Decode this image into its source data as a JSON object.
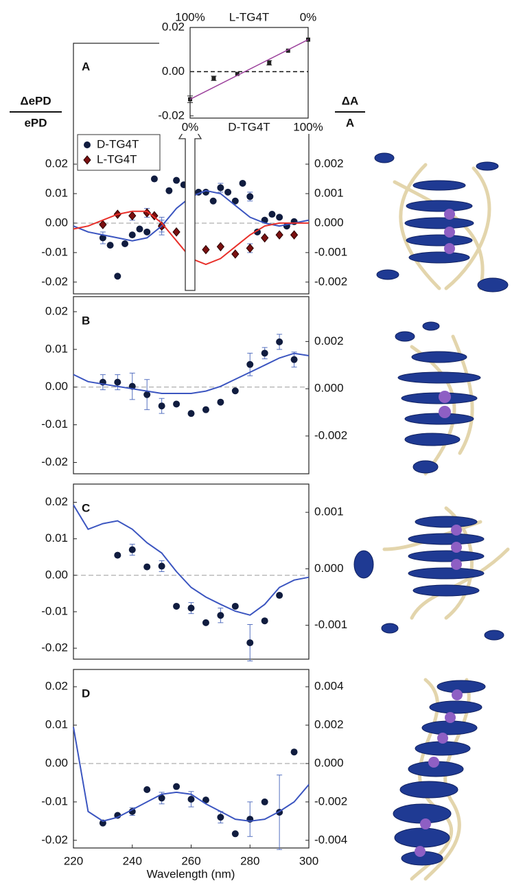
{
  "axis_titles": {
    "left_top": "ΔePD",
    "left_bottom": "ePD",
    "right_top": "ΔA",
    "right_bottom": "A",
    "x": "Wavelength (nm)"
  },
  "chart_data": [
    {
      "type": "combo",
      "label": "A",
      "xlim": [
        220,
        300
      ],
      "ylim": [
        -0.024,
        0.061
      ],
      "y2lim": [
        -0.0024,
        0.0061
      ],
      "yticks": [
        0.02,
        0.01,
        {
          "value": 0,
          "label": "0.00"
        },
        -0.01,
        -0.02
      ],
      "y2ticks": [
        0.002,
        0.001,
        {
          "value": 0,
          "label": "0.000"
        },
        -0.001,
        -0.002
      ],
      "legend": "upper left",
      "series": [
        {
          "name": "D-TG4T",
          "marker": "circle",
          "color": "#101c3f",
          "x": [
            230,
            232.5,
            235,
            237.5,
            240,
            242.5,
            245,
            247.5,
            250,
            252.5,
            255,
            257.5,
            260,
            262.5,
            265,
            267.5,
            270,
            272.5,
            275,
            277.5,
            280,
            282.5,
            285,
            287.5,
            290,
            292.5,
            295
          ],
          "values": [
            -0.005,
            -0.0075,
            -0.018,
            -0.007,
            -0.004,
            -0.002,
            -0.003,
            0.015,
            -0.001,
            0.011,
            0.0145,
            0.013,
            0.017,
            0.0105,
            0.0105,
            0.0075,
            0.012,
            0.0105,
            0.0075,
            0.0135,
            0.009,
            -0.003,
            0.001,
            0.003,
            0.002,
            -0.001,
            0.0005
          ],
          "errors": [
            0.002,
            null,
            null,
            null,
            null,
            null,
            null,
            null,
            0.002,
            null,
            null,
            null,
            null,
            null,
            null,
            null,
            0.0015,
            null,
            null,
            null,
            0.0015,
            null,
            null,
            null,
            null,
            null,
            null
          ]
        },
        {
          "name": "L-TG4T",
          "marker": "diamond",
          "color": "#7a1010",
          "x": [
            230,
            235,
            240,
            245,
            247.5,
            250,
            255,
            260,
            265,
            270,
            275,
            280,
            285,
            290,
            295
          ],
          "values": [
            -0.0005,
            0.003,
            0.0025,
            0.0035,
            0.0025,
            -0.001,
            -0.003,
            -0.0125,
            -0.009,
            -0.008,
            -0.0105,
            -0.0085,
            -0.005,
            -0.004,
            -0.004
          ],
          "errors": [
            null,
            null,
            0.0015,
            0.0015,
            null,
            0.003,
            null,
            null,
            null,
            null,
            null,
            0.0015,
            null,
            null,
            null
          ]
        },
        {
          "marker": "none",
          "color": "#3b55c0",
          "axis": "y2",
          "x": [
            220,
            225,
            230,
            235,
            240,
            245,
            250,
            255,
            260,
            265,
            270,
            275,
            280,
            285,
            290,
            295,
            300
          ],
          "values": [
            -0.0001,
            -0.0003,
            -0.0004,
            -0.0005,
            -0.0006,
            -0.0005,
            -0.0001,
            0.0005,
            0.0009,
            0.0011,
            0.001,
            0.0006,
            0.0002,
            0,
            -0.0001,
            0,
            0.0001
          ]
        },
        {
          "marker": "none",
          "color": "#e8302a",
          "axis": "y2",
          "x": [
            220,
            225,
            230,
            235,
            240,
            245,
            250,
            255,
            260,
            265,
            270,
            275,
            280,
            285,
            290,
            295,
            300
          ],
          "values": [
            -0.0002,
            -0.0001,
            0.0001,
            0.0003,
            0.0004,
            0.0004,
            0,
            -0.0006,
            -0.0012,
            -0.0014,
            -0.0012,
            -0.0008,
            -0.0004,
            -0.0001,
            0,
            0,
            0
          ]
        }
      ]
    },
    {
      "type": "combo",
      "label": "B",
      "xlim": [
        220,
        300
      ],
      "ylim": [
        -0.023,
        0.024
      ],
      "y2lim": [
        -0.0036,
        0.0039
      ],
      "yticks": [
        0.02,
        0.01,
        {
          "value": 0,
          "label": "0.00"
        },
        -0.01,
        -0.02
      ],
      "y2ticks": [
        0.002,
        {
          "value": 0,
          "label": "0.000"
        },
        -0.002
      ],
      "series": [
        {
          "marker": "circle",
          "color": "#101c3f",
          "x": [
            230,
            235,
            240,
            245,
            250,
            255,
            260,
            265,
            270,
            275,
            280,
            285,
            290,
            295
          ],
          "values": [
            0.0013,
            0.0013,
            0.0002,
            -0.002,
            -0.005,
            -0.0045,
            -0.007,
            -0.006,
            -0.004,
            -0.001,
            0.006,
            0.009,
            0.012,
            0.0073
          ],
          "errors": [
            0.002,
            0.002,
            0.0035,
            0.004,
            0.002,
            null,
            null,
            null,
            null,
            null,
            0.003,
            0.0015,
            0.002,
            0.002
          ]
        },
        {
          "marker": "none",
          "color": "#3b55c0",
          "axis": "y2",
          "x": [
            220,
            225,
            230,
            235,
            240,
            245,
            250,
            255,
            260,
            265,
            270,
            275,
            280,
            285,
            290,
            295,
            300
          ],
          "values": [
            0.0006,
            0.0003,
            0.0002,
            0.0001,
            0,
            -0.0001,
            -0.0002,
            -0.0002,
            -0.0002,
            -0.0001,
            0.0001,
            0.0004,
            0.0007,
            0.001,
            0.0013,
            0.0015,
            0.0014
          ]
        }
      ]
    },
    {
      "type": "combo",
      "label": "C",
      "xlim": [
        220,
        300
      ],
      "ylim": [
        -0.023,
        0.025
      ],
      "y2lim": [
        -0.0016,
        0.0015
      ],
      "yticks": [
        0.02,
        0.01,
        {
          "value": 0,
          "label": "0.00"
        },
        -0.01,
        -0.02
      ],
      "y2ticks": [
        0.001,
        {
          "value": 0,
          "label": "0.000"
        },
        -0.001
      ],
      "series": [
        {
          "marker": "circle",
          "color": "#101c3f",
          "x": [
            235,
            240,
            245,
            250,
            255,
            260,
            265,
            270,
            275,
            280,
            285,
            290
          ],
          "values": [
            0.0055,
            0.007,
            0.0023,
            0.0025,
            -0.0085,
            -0.009,
            -0.013,
            -0.011,
            -0.0085,
            -0.0185,
            -0.0125,
            -0.0055
          ],
          "errors": [
            null,
            0.0015,
            null,
            0.0015,
            null,
            0.0015,
            null,
            0.002,
            null,
            0.005,
            null,
            null
          ]
        },
        {
          "marker": "none",
          "color": "#3b55c0",
          "axis": "y2",
          "x": [
            220,
            225,
            230,
            235,
            240,
            245,
            250,
            255,
            260,
            265,
            270,
            275,
            280,
            285,
            290,
            295,
            300
          ],
          "values": [
            0.00113,
            0.0007,
            0.0008,
            0.00085,
            0.0007,
            0.00046,
            0.00028,
            -5e-05,
            -0.00033,
            -0.0005,
            -0.00063,
            -0.00075,
            -0.00082,
            -0.00063,
            -0.00033,
            -0.0002,
            -0.00015
          ]
        }
      ]
    },
    {
      "type": "combo",
      "label": "D",
      "xlim": [
        220,
        300
      ],
      "ylim": [
        -0.022,
        0.0245
      ],
      "y2lim": [
        -0.0044,
        0.0049
      ],
      "xticks": [
        220,
        240,
        260,
        280,
        300
      ],
      "yticks": [
        0.02,
        0.01,
        {
          "value": 0,
          "label": "0.00"
        },
        -0.01,
        -0.02
      ],
      "y2ticks": [
        0.004,
        0.002,
        {
          "value": 0,
          "label": "0.000"
        },
        -0.002,
        -0.004
      ],
      "series": [
        {
          "marker": "circle",
          "color": "#101c3f",
          "x": [
            230,
            235,
            240,
            245,
            250,
            255,
            260,
            265,
            270,
            275,
            280,
            285,
            290,
            295
          ],
          "values": [
            -0.0155,
            -0.0135,
            -0.0125,
            -0.0068,
            -0.009,
            -0.006,
            -0.0093,
            -0.0095,
            -0.014,
            -0.0183,
            -0.0145,
            -0.01,
            -0.0127,
            0.003
          ],
          "errors": [
            null,
            null,
            0.001,
            null,
            0.0015,
            null,
            0.002,
            null,
            0.0015,
            null,
            0.0045,
            null,
            0.0097,
            null
          ]
        },
        {
          "marker": "none",
          "color": "#3b55c0",
          "axis": "y2",
          "x": [
            220,
            225,
            230,
            235,
            240,
            245,
            250,
            255,
            260,
            265,
            270,
            275,
            280,
            285,
            290,
            295,
            300
          ],
          "values": [
            0.0019,
            -0.0025,
            -0.003,
            -0.0028,
            -0.0024,
            -0.002,
            -0.0016,
            -0.0015,
            -0.0016,
            -0.0021,
            -0.0025,
            -0.0029,
            -0.003,
            -0.0029,
            -0.0025,
            -0.002,
            -0.0011
          ]
        }
      ]
    },
    {
      "type": "combo",
      "xlim": [
        0,
        100
      ],
      "x2lim": [
        100,
        0
      ],
      "ylim": [
        -0.021,
        0.02
      ],
      "xlabel": "D-TG4T",
      "x2label": "L-TG4T",
      "xticks": [
        {
          "value": 0,
          "label": "0%"
        },
        {
          "value": 100,
          "label": "100%"
        }
      ],
      "x2ticks": [
        {
          "value": 100,
          "label": "100%"
        },
        {
          "value": 0,
          "label": "0%"
        }
      ],
      "yticks": [
        0.02,
        {
          "value": 0,
          "label": "0.00"
        },
        -0.02
      ],
      "series": [
        {
          "marker": "square",
          "color": "#222222",
          "x": [
            0,
            20,
            40,
            67,
            83,
            100
          ],
          "values": [
            -0.0125,
            -0.003,
            -0.001,
            0.004,
            0.0095,
            0.0145
          ],
          "errors": [
            0.0015,
            0.001,
            null,
            0.001,
            null,
            null
          ]
        },
        {
          "marker": "none",
          "color": "#9b3f9b",
          "x": [
            0,
            100
          ],
          "values": [
            -0.0125,
            0.0145
          ]
        }
      ]
    }
  ]
}
